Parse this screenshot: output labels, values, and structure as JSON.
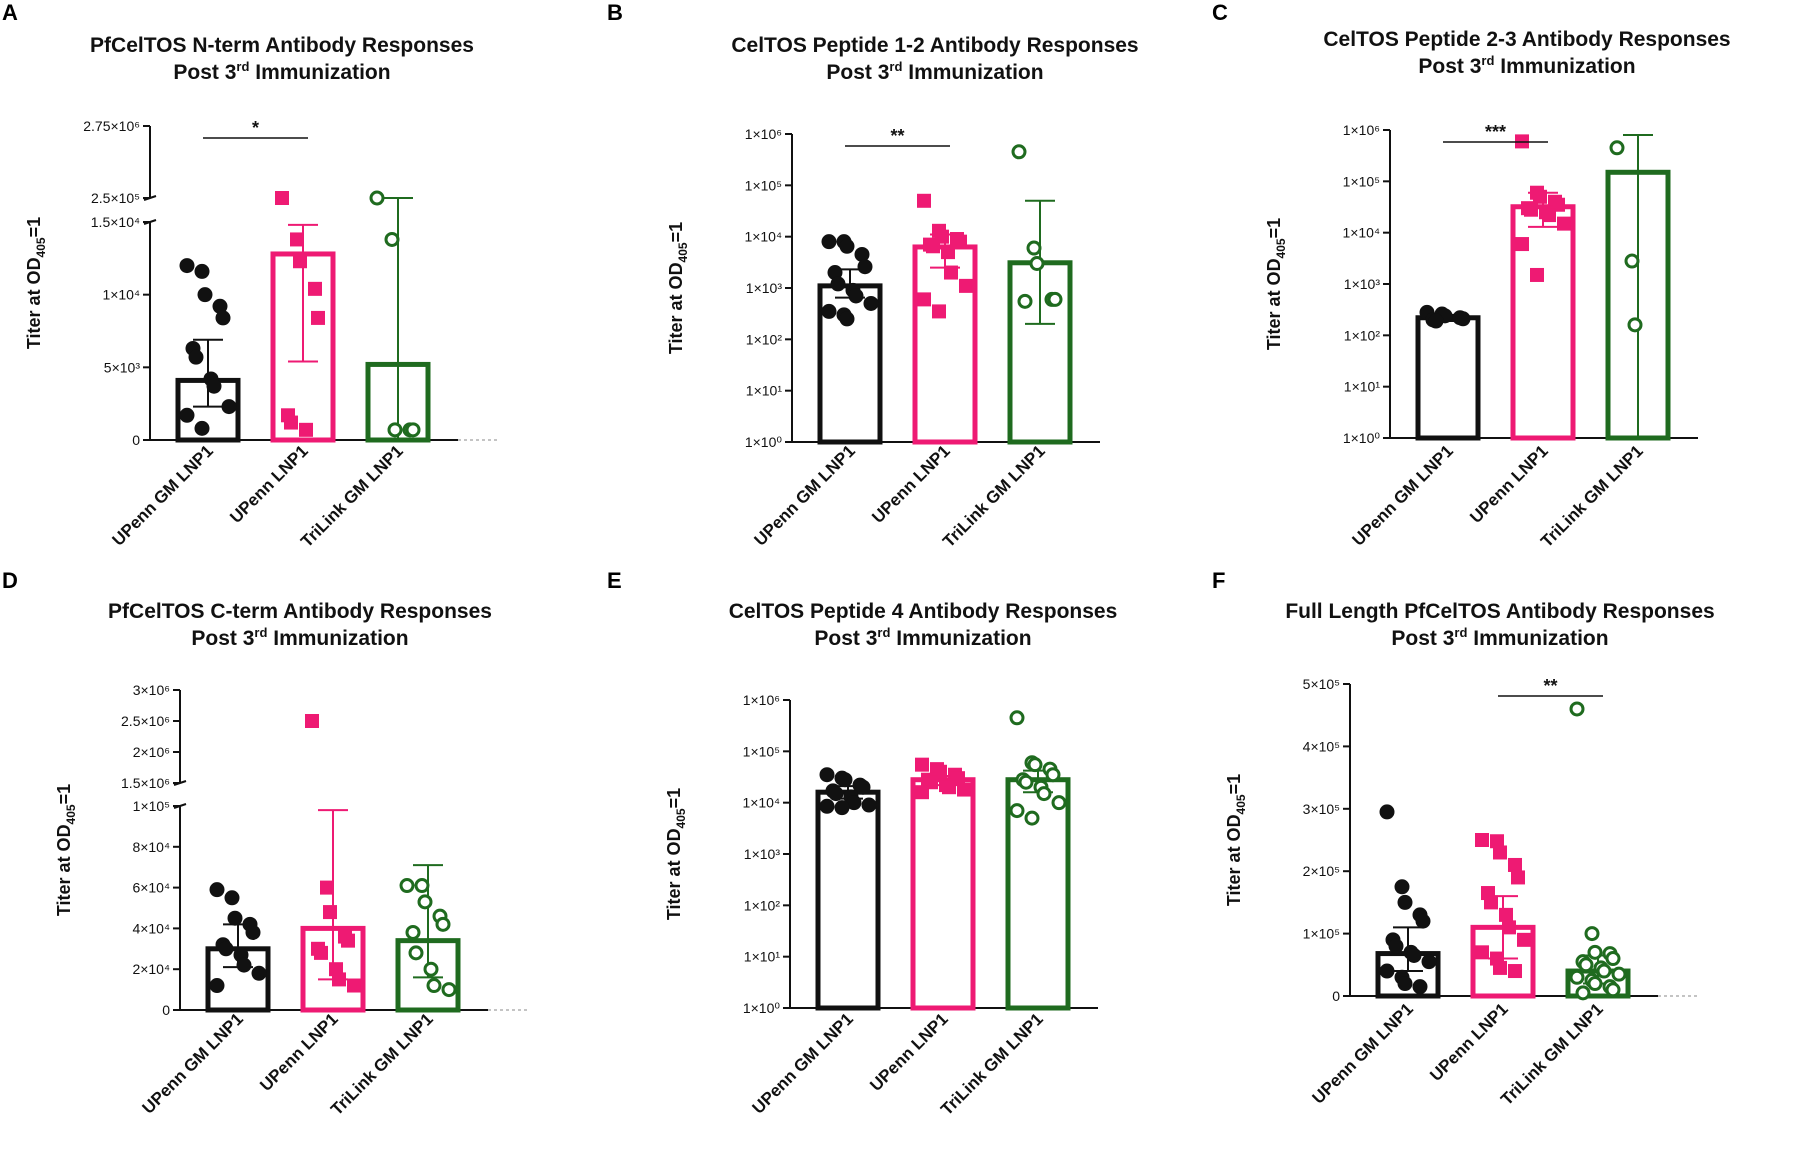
{
  "figure": {
    "colors": {
      "black": "#111111",
      "pink": "#ee1a73",
      "green": "#1f6b1f",
      "axis": "#111111"
    }
  },
  "chart_data": [
    {
      "panel": "A",
      "type": "bar",
      "title_line1": "PfCelTOS N-term Antibody Responses",
      "title_line2_base": "Post 3",
      "title_line2_sup": "rd",
      "title_line2_rest": " Immunization",
      "ylabel_base": "Titer at OD",
      "ylabel_sub": "405",
      "ylabel_rest": "=1",
      "scale": "broken-linear",
      "ylim": [
        0,
        2750000
      ],
      "ybreak": {
        "low": [
          0,
          15000
        ],
        "high": [
          250000,
          2750000
        ]
      },
      "yticks": [
        {
          "value": 0,
          "label": "0"
        },
        {
          "value": 5000,
          "label": "5×10³"
        },
        {
          "value": 10000,
          "label": "1×10⁴"
        },
        {
          "value": 15000,
          "label": "1.5×10⁴"
        },
        {
          "value": 250000,
          "label": "2.5×10⁵"
        },
        {
          "value": 2750000,
          "label": "2.75×10⁶"
        }
      ],
      "categories": [
        "UPenn GM LNP1",
        "UPenn LNP1",
        "TriLink GM LNP1"
      ],
      "series": [
        {
          "name": "UPenn GM LNP1",
          "color": "black",
          "marker": "circle",
          "bar": 4100,
          "error": [
            2300,
            6900
          ],
          "points": [
            12000,
            11600,
            10000,
            9200,
            8400,
            6300,
            5700,
            4200,
            3700,
            2300,
            1700,
            800
          ]
        },
        {
          "name": "UPenn LNP1",
          "color": "pink",
          "marker": "square",
          "bar": 12800,
          "error": [
            5400,
            14800
          ],
          "points": [
            250000,
            13800,
            12300,
            10400,
            8400,
            1700,
            1200,
            700
          ]
        },
        {
          "name": "TriLink GM LNP1",
          "color": "green",
          "marker": "open-circle",
          "bar": 5200,
          "error": [
            0,
            250000
          ],
          "points": [
            250000,
            13800,
            700,
            700,
            700
          ]
        }
      ],
      "significance": [
        {
          "from": 0,
          "to": 1,
          "label": "*"
        }
      ]
    },
    {
      "panel": "B",
      "type": "bar",
      "title_line1": "CelTOS Peptide 1-2 Antibody Responses",
      "title_line2_base": "Post 3",
      "title_line2_sup": "rd",
      "title_line2_rest": " Immunization",
      "ylabel_base": "Titer at OD",
      "ylabel_sub": "405",
      "ylabel_rest": "=1",
      "scale": "log",
      "ylim": [
        1,
        1000000
      ],
      "yticks": [
        {
          "value": 1,
          "label": "1×10⁰"
        },
        {
          "value": 10,
          "label": "1×10¹"
        },
        {
          "value": 100,
          "label": "1×10²"
        },
        {
          "value": 1000,
          "label": "1×10³"
        },
        {
          "value": 10000,
          "label": "1×10⁴"
        },
        {
          "value": 100000,
          "label": "1×10⁵"
        },
        {
          "value": 1000000,
          "label": "1×10⁶"
        }
      ],
      "categories": [
        "UPenn GM LNP1",
        "UPenn LNP1",
        "TriLink GM LNP1"
      ],
      "series": [
        {
          "name": "UPenn GM LNP1",
          "color": "black",
          "marker": "circle",
          "bar": 1100,
          "error": [
            650,
            2300
          ],
          "points": [
            8000,
            8000,
            6500,
            4500,
            2600,
            2000,
            1200,
            900,
            700,
            500,
            350,
            300,
            250
          ]
        },
        {
          "name": "UPenn LNP1",
          "color": "pink",
          "marker": "square",
          "bar": 6300,
          "error": [
            2500,
            11000
          ],
          "points": [
            50000,
            13000,
            10000,
            9000,
            8000,
            7000,
            6500,
            5000,
            2000,
            1100,
            600,
            350
          ]
        },
        {
          "name": "TriLink GM LNP1",
          "color": "green",
          "marker": "open-circle",
          "bar": 3100,
          "error": [
            200,
            50000
          ],
          "points": [
            450000,
            6000,
            3000,
            600,
            600,
            550
          ]
        }
      ],
      "significance": [
        {
          "from": 0,
          "to": 1,
          "label": "**"
        }
      ]
    },
    {
      "panel": "C",
      "type": "bar",
      "title_line1": "CelTOS Peptide 2-3 Antibody Responses",
      "title_line2_base": "Post 3",
      "title_line2_sup": "rd",
      "title_line2_rest": " Immunization",
      "ylabel_base": "Titer at OD",
      "ylabel_sub": "405",
      "ylabel_rest": "=1",
      "scale": "log",
      "ylim": [
        1,
        1000000
      ],
      "yticks": [
        {
          "value": 1,
          "label": "1×10⁰"
        },
        {
          "value": 10,
          "label": "1×10¹"
        },
        {
          "value": 100,
          "label": "1×10²"
        },
        {
          "value": 1000,
          "label": "1×10³"
        },
        {
          "value": 10000,
          "label": "1×10⁴"
        },
        {
          "value": 100000,
          "label": "1×10⁵"
        },
        {
          "value": 1000000,
          "label": "1×10⁶"
        }
      ],
      "categories": [
        "UPenn GM LNP1",
        "UPenn LNP1",
        "TriLink GM LNP1"
      ],
      "series": [
        {
          "name": "UPenn GM LNP1",
          "color": "black",
          "marker": "circle",
          "bar": 220,
          "error": [
            190,
            250
          ],
          "points": [
            280,
            260,
            240,
            220,
            210,
            200,
            190
          ]
        },
        {
          "name": "UPenn LNP1",
          "color": "pink",
          "marker": "square",
          "bar": 32000,
          "error": [
            13000,
            60000
          ],
          "points": [
            600000,
            60000,
            50000,
            40000,
            35000,
            30000,
            28000,
            25000,
            22000,
            15000,
            6000,
            1500
          ]
        },
        {
          "name": "TriLink GM LNP1",
          "color": "green",
          "marker": "open-circle",
          "bar": 150000,
          "error": [
            0,
            800000
          ],
          "points": [
            450000,
            2800,
            160
          ]
        }
      ],
      "significance": [
        {
          "from": 0,
          "to": 1,
          "label": "***"
        }
      ]
    },
    {
      "panel": "D",
      "type": "bar",
      "title_line1": "PfCelTOS C-term Antibody Responses",
      "title_line2_base": "Post 3",
      "title_line2_sup": "rd",
      "title_line2_rest": " Immunization",
      "ylabel_base": "Titer at OD",
      "ylabel_sub": "405",
      "ylabel_rest": "=1",
      "scale": "broken-linear",
      "ylim": [
        0,
        3000000
      ],
      "ybreak": {
        "low": [
          0,
          100000
        ],
        "high": [
          1500000,
          3000000
        ]
      },
      "yticks": [
        {
          "value": 0,
          "label": "0"
        },
        {
          "value": 20000,
          "label": "2×10⁴"
        },
        {
          "value": 40000,
          "label": "4×10⁴"
        },
        {
          "value": 60000,
          "label": "6×10⁴"
        },
        {
          "value": 80000,
          "label": "8×10⁴"
        },
        {
          "value": 100000,
          "label": "1×10⁵"
        },
        {
          "value": 1500000,
          "label": "1.5×10⁶"
        },
        {
          "value": 2000000,
          "label": "2×10⁶"
        },
        {
          "value": 2500000,
          "label": "2.5×10⁶"
        },
        {
          "value": 3000000,
          "label": "3×10⁶"
        }
      ],
      "categories": [
        "UPenn GM LNP1",
        "UPenn LNP1",
        "TriLink GM LNP1"
      ],
      "series": [
        {
          "name": "UPenn GM LNP1",
          "color": "black",
          "marker": "circle",
          "bar": 30000,
          "error": [
            21000,
            42000
          ],
          "points": [
            59000,
            55000,
            45000,
            42000,
            38000,
            32000,
            30000,
            27000,
            22000,
            18000,
            12000
          ]
        },
        {
          "name": "UPenn LNP1",
          "color": "pink",
          "marker": "square",
          "bar": 40000,
          "error": [
            15000,
            98000
          ],
          "points": [
            2500000,
            60000,
            48000,
            36000,
            34000,
            30000,
            28000,
            20000,
            15000,
            12000
          ]
        },
        {
          "name": "TriLink GM LNP1",
          "color": "green",
          "marker": "open-circle",
          "bar": 34000,
          "error": [
            16000,
            71000
          ],
          "points": [
            61000,
            61000,
            53000,
            46000,
            42000,
            38000,
            28000,
            20000,
            12000,
            10000
          ]
        }
      ],
      "significance": []
    },
    {
      "panel": "E",
      "type": "bar",
      "title_line1": "CelTOS Peptide 4 Antibody Responses",
      "title_line2_base": "Post 3",
      "title_line2_sup": "rd",
      "title_line2_rest": " Immunization",
      "ylabel_base": "Titer at OD",
      "ylabel_sub": "405",
      "ylabel_rest": "=1",
      "scale": "log",
      "ylim": [
        1,
        1000000
      ],
      "yticks": [
        {
          "value": 1,
          "label": "1×10⁰"
        },
        {
          "value": 10,
          "label": "1×10¹"
        },
        {
          "value": 100,
          "label": "1×10²"
        },
        {
          "value": 1000,
          "label": "1×10³"
        },
        {
          "value": 10000,
          "label": "1×10⁴"
        },
        {
          "value": 100000,
          "label": "1×10⁵"
        },
        {
          "value": 1000000,
          "label": "1×10⁶"
        }
      ],
      "categories": [
        "UPenn GM LNP1",
        "UPenn LNP1",
        "TriLink GM LNP1"
      ],
      "series": [
        {
          "name": "UPenn GM LNP1",
          "color": "black",
          "marker": "circle",
          "bar": 16000,
          "error": [
            12000,
            21000
          ],
          "points": [
            35000,
            30000,
            28000,
            22000,
            20000,
            17000,
            15000,
            13000,
            10000,
            9000,
            8500,
            8000
          ]
        },
        {
          "name": "UPenn LNP1",
          "color": "pink",
          "marker": "square",
          "bar": 28000,
          "error": [
            22000,
            33000
          ],
          "points": [
            55000,
            45000,
            40000,
            35000,
            30000,
            28000,
            25000,
            22000,
            20000,
            18000,
            16000
          ]
        },
        {
          "name": "TriLink GM LNP1",
          "color": "green",
          "marker": "open-circle",
          "bar": 28000,
          "error": [
            16000,
            42000
          ],
          "points": [
            450000,
            60000,
            55000,
            45000,
            35000,
            28000,
            25000,
            20000,
            15000,
            10000,
            7000,
            5000
          ]
        }
      ],
      "significance": []
    },
    {
      "panel": "F",
      "type": "bar",
      "title_line1": "Full Length PfCelTOS Antibody Responses",
      "title_line2_base": "Post 3",
      "title_line2_sup": "rd",
      "title_line2_rest": " Immunization",
      "ylabel_base": "Titer at OD",
      "ylabel_sub": "405",
      "ylabel_rest": "=1",
      "scale": "linear",
      "ylim": [
        0,
        500000
      ],
      "yticks": [
        {
          "value": 0,
          "label": "0"
        },
        {
          "value": 100000,
          "label": "1×10⁵"
        },
        {
          "value": 200000,
          "label": "2×10⁵"
        },
        {
          "value": 300000,
          "label": "3×10⁵"
        },
        {
          "value": 400000,
          "label": "4×10⁵"
        },
        {
          "value": 500000,
          "label": "5×10⁵"
        }
      ],
      "categories": [
        "UPenn GM LNP1",
        "UPenn LNP1",
        "TriLink GM LNP1"
      ],
      "series": [
        {
          "name": "UPenn GM LNP1",
          "color": "black",
          "marker": "circle",
          "bar": 68000,
          "error": [
            40000,
            110000
          ],
          "points": [
            295000,
            175000,
            150000,
            130000,
            120000,
            90000,
            80000,
            70000,
            65000,
            55000,
            40000,
            30000,
            20000,
            15000
          ]
        },
        {
          "name": "UPenn LNP1",
          "color": "pink",
          "marker": "square",
          "bar": 110000,
          "error": [
            60000,
            160000
          ],
          "points": [
            250000,
            248000,
            230000,
            210000,
            190000,
            165000,
            150000,
            130000,
            110000,
            90000,
            70000,
            60000,
            45000,
            40000
          ]
        },
        {
          "name": "TriLink GM LNP1",
          "color": "green",
          "marker": "open-circle",
          "bar": 40000,
          "error": [
            20000,
            65000
          ],
          "points": [
            460000,
            100000,
            70000,
            68000,
            60000,
            55000,
            50000,
            45000,
            40000,
            35000,
            30000,
            25000,
            20000,
            15000,
            10000,
            5000
          ]
        }
      ],
      "significance": [
        {
          "from": 1,
          "to": 2,
          "label": "**"
        }
      ]
    }
  ]
}
